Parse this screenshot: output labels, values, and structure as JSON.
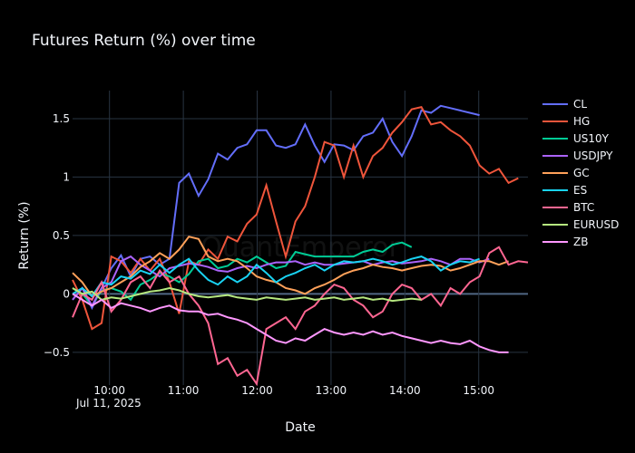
{
  "chart_data": {
    "type": "line",
    "title": "Futures Return (%) over time",
    "xlabel": "Date",
    "ylabel": "Return (%)",
    "watermark": "QuantEmperor",
    "date_label": "Jul 11, 2025",
    "x_start": "09:30",
    "x_end": "15:40",
    "xlim": [
      "09:30",
      "15:40"
    ],
    "ylim": [
      -0.78,
      1.74
    ],
    "x_ticks": [
      "10:00",
      "11:00",
      "12:00",
      "13:00",
      "14:00",
      "15:00"
    ],
    "y_ticks": [
      -0.5,
      0,
      0.5,
      1,
      1.5
    ],
    "y_tick_labels": [
      "−0.5",
      "0",
      "0.5",
      "1",
      "1.5"
    ],
    "grid": true,
    "legend_position": "right",
    "series": [
      {
        "name": "CL",
        "color": "#636efa",
        "values": [
          -0.05,
          0.05,
          -0.12,
          0.05,
          0.22,
          0.33,
          0.15,
          0.3,
          0.32,
          0.25,
          0.3,
          0.95,
          1.03,
          0.84,
          0.98,
          1.2,
          1.15,
          1.25,
          1.28,
          1.4,
          1.4,
          1.27,
          1.25,
          1.28,
          1.45,
          1.27,
          1.13,
          1.28,
          1.27,
          1.23,
          1.35,
          1.38,
          1.5,
          1.3,
          1.18,
          1.35,
          1.57,
          1.55,
          1.61,
          1.59,
          1.57,
          1.55,
          1.53
        ]
      },
      {
        "name": "HG",
        "color": "#ef553b",
        "values": [
          0.12,
          -0.05,
          -0.3,
          -0.25,
          0.32,
          0.28,
          0.18,
          0.3,
          0.2,
          0.3,
          0.1,
          -0.17,
          0.28,
          0.25,
          0.38,
          0.3,
          0.49,
          0.45,
          0.6,
          0.68,
          0.93,
          0.62,
          0.32,
          0.62,
          0.75,
          1.0,
          1.3,
          1.27,
          1.0,
          1.27,
          1.0,
          1.18,
          1.25,
          1.38,
          1.47,
          1.58,
          1.6,
          1.45,
          1.47,
          1.4,
          1.35,
          1.27,
          1.1,
          1.03,
          1.07,
          0.95,
          0.99
        ]
      },
      {
        "name": "US10Y",
        "color": "#00cc96",
        "values": [
          0.05,
          0.0,
          -0.1,
          0.03,
          0.05,
          0.02,
          -0.05,
          0.08,
          0.12,
          0.18,
          0.15,
          0.1,
          0.17,
          0.28,
          0.3,
          0.22,
          0.24,
          0.3,
          0.27,
          0.32,
          0.27,
          0.22,
          0.24,
          0.36,
          0.34,
          0.32,
          0.32,
          0.32,
          0.32,
          0.32,
          0.36,
          0.38,
          0.36,
          0.42,
          0.44,
          0.4
        ]
      },
      {
        "name": "USDJPY",
        "color": "#ab63fa",
        "values": [
          -0.05,
          0.05,
          -0.1,
          0.05,
          0.1,
          0.28,
          0.32,
          0.25,
          0.2,
          0.15,
          0.22,
          0.24,
          0.26,
          0.25,
          0.23,
          0.2,
          0.19,
          0.22,
          0.24,
          0.22,
          0.25,
          0.27,
          0.27,
          0.28,
          0.25,
          0.27,
          0.25,
          0.25,
          0.26,
          0.27,
          0.28,
          0.25,
          0.27,
          0.28,
          0.26,
          0.27,
          0.28,
          0.3,
          0.28,
          0.25,
          0.3,
          0.3,
          0.27,
          0.3
        ]
      },
      {
        "name": "GC",
        "color": "#ffa15a",
        "values": [
          0.18,
          0.1,
          -0.02,
          0.02,
          0.05,
          0.1,
          0.15,
          0.23,
          0.28,
          0.35,
          0.3,
          0.38,
          0.49,
          0.47,
          0.32,
          0.28,
          0.3,
          0.28,
          0.22,
          0.15,
          0.12,
          0.1,
          0.05,
          0.03,
          0.0,
          0.05,
          0.08,
          0.12,
          0.17,
          0.2,
          0.22,
          0.25,
          0.23,
          0.22,
          0.2,
          0.22,
          0.24,
          0.25,
          0.24,
          0.2,
          0.22,
          0.25,
          0.28,
          0.28,
          0.25,
          0.28
        ]
      },
      {
        "name": "ES",
        "color": "#19d3f3",
        "values": [
          0.0,
          0.05,
          -0.02,
          0.1,
          0.08,
          0.15,
          0.13,
          0.2,
          0.17,
          0.25,
          0.18,
          0.25,
          0.3,
          0.2,
          0.12,
          0.08,
          0.15,
          0.1,
          0.15,
          0.25,
          0.18,
          0.1,
          0.15,
          0.18,
          0.22,
          0.25,
          0.2,
          0.25,
          0.28,
          0.27,
          0.28,
          0.3,
          0.28,
          0.25,
          0.27,
          0.3,
          0.32,
          0.28,
          0.2,
          0.25,
          0.28,
          0.27,
          0.3
        ]
      },
      {
        "name": "BTC",
        "color": "#ff6692",
        "values": [
          -0.2,
          0.0,
          -0.05,
          0.1,
          -0.15,
          -0.05,
          0.1,
          0.15,
          0.05,
          0.2,
          0.1,
          0.15,
          0.0,
          -0.1,
          -0.25,
          -0.6,
          -0.55,
          -0.7,
          -0.65,
          -0.77,
          -0.3,
          -0.25,
          -0.2,
          -0.3,
          -0.15,
          -0.1,
          0.0,
          0.08,
          0.05,
          -0.05,
          -0.1,
          -0.2,
          -0.15,
          0.0,
          0.08,
          0.05,
          -0.05,
          0.0,
          -0.1,
          0.05,
          0.0,
          0.1,
          0.15,
          0.35,
          0.4,
          0.25,
          0.28,
          0.27
        ]
      },
      {
        "name": "EURUSD",
        "color": "#b6e880",
        "values": [
          0.05,
          0.0,
          0.02,
          -0.05,
          -0.03,
          -0.04,
          -0.02,
          0.0,
          0.02,
          0.03,
          0.05,
          0.03,
          0.0,
          -0.02,
          -0.03,
          -0.02,
          -0.01,
          -0.03,
          -0.04,
          -0.05,
          -0.03,
          -0.04,
          -0.05,
          -0.04,
          -0.03,
          -0.05,
          -0.04,
          -0.03,
          -0.05,
          -0.04,
          -0.03,
          -0.05,
          -0.04,
          -0.06,
          -0.05,
          -0.04,
          -0.05
        ]
      },
      {
        "name": "ZB",
        "color": "#ff97ff",
        "values": [
          0.0,
          -0.05,
          -0.1,
          -0.05,
          -0.12,
          -0.08,
          -0.1,
          -0.12,
          -0.15,
          -0.12,
          -0.1,
          -0.14,
          -0.15,
          -0.15,
          -0.18,
          -0.17,
          -0.2,
          -0.22,
          -0.25,
          -0.3,
          -0.35,
          -0.4,
          -0.42,
          -0.38,
          -0.4,
          -0.35,
          -0.3,
          -0.33,
          -0.35,
          -0.33,
          -0.35,
          -0.32,
          -0.35,
          -0.33,
          -0.36,
          -0.38,
          -0.4,
          -0.42,
          -0.4,
          -0.42,
          -0.43,
          -0.4,
          -0.45,
          -0.48,
          -0.5,
          -0.5
        ]
      }
    ]
  }
}
